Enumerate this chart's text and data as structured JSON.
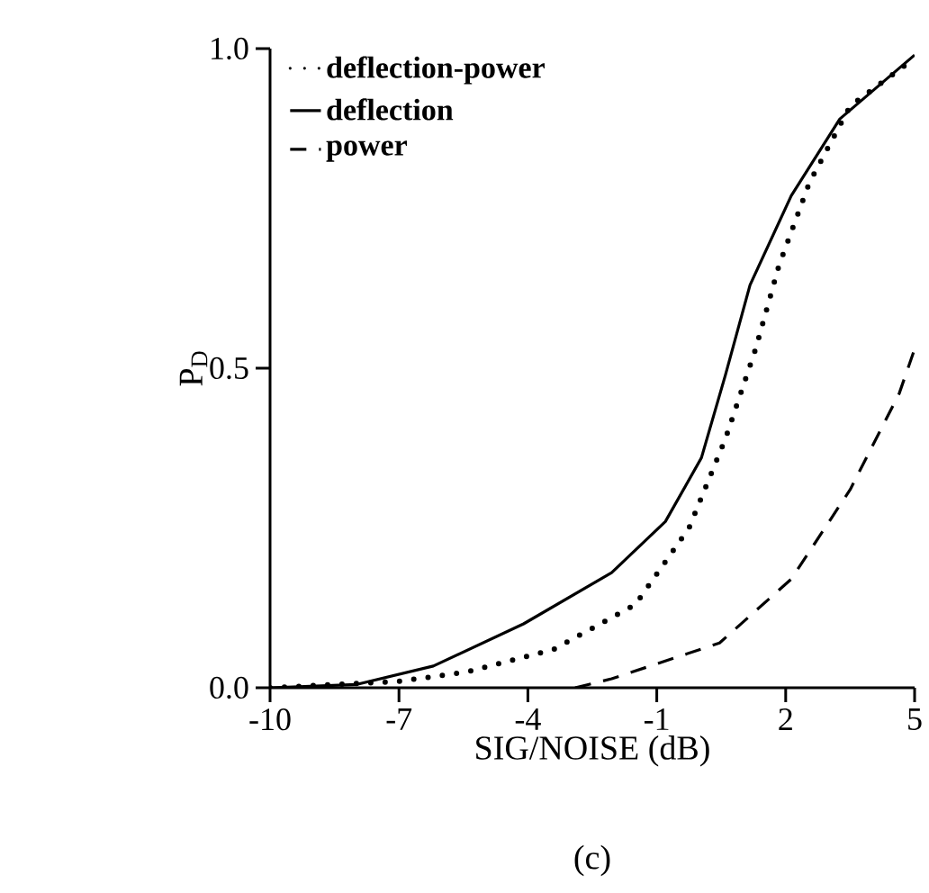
{
  "chart_data": {
    "type": "line",
    "xlabel": "SIG/NOISE (dB)",
    "ylabel": "P$_{D}$",
    "annotations": [
      "(c)"
    ],
    "xlim": [
      -10,
      5
    ],
    "ylim": [
      0,
      1
    ],
    "xticks": [
      -10,
      -7,
      -4,
      -1,
      2,
      5
    ],
    "yticks": [
      {
        "value": 0,
        "label": "0.0"
      },
      {
        "value": 0.5,
        "label": "0.5"
      },
      {
        "value": 1,
        "label": "1.0"
      }
    ],
    "grid": false,
    "legend": "top left",
    "marker": "none",
    "series": [
      {
        "name": "deflection-power",
        "color": "#000000",
        "line_style": "dotted",
        "x": [
          -10,
          -7,
          -5.4,
          -3.4,
          -1.5,
          -0.25,
          0.6,
          1.3,
          1.84,
          2.55,
          3.5,
          5
        ],
        "values": [
          0,
          0.01,
          0.025,
          0.06,
          0.13,
          0.25,
          0.39,
          0.53,
          0.66,
          0.79,
          0.91,
          0.985
        ]
      },
      {
        "name": "deflection",
        "color": "#000000",
        "line_style": "solid",
        "x": [
          -10,
          -8,
          -6.2,
          -4.1,
          -2.05,
          -0.8,
          0.04,
          0.6,
          1.17,
          2.13,
          3.26,
          5
        ],
        "values": [
          0,
          0.005,
          0.034,
          0.1,
          0.18,
          0.26,
          0.36,
          0.49,
          0.63,
          0.77,
          0.89,
          0.99
        ]
      },
      {
        "name": "power",
        "color": "#000000",
        "line_style": "dashed",
        "x": [
          -2.9,
          -2.05,
          0.46,
          2.13,
          3.5,
          4.64,
          5
        ],
        "values": [
          0,
          0.014,
          0.07,
          0.17,
          0.31,
          0.46,
          0.53
        ]
      }
    ]
  }
}
